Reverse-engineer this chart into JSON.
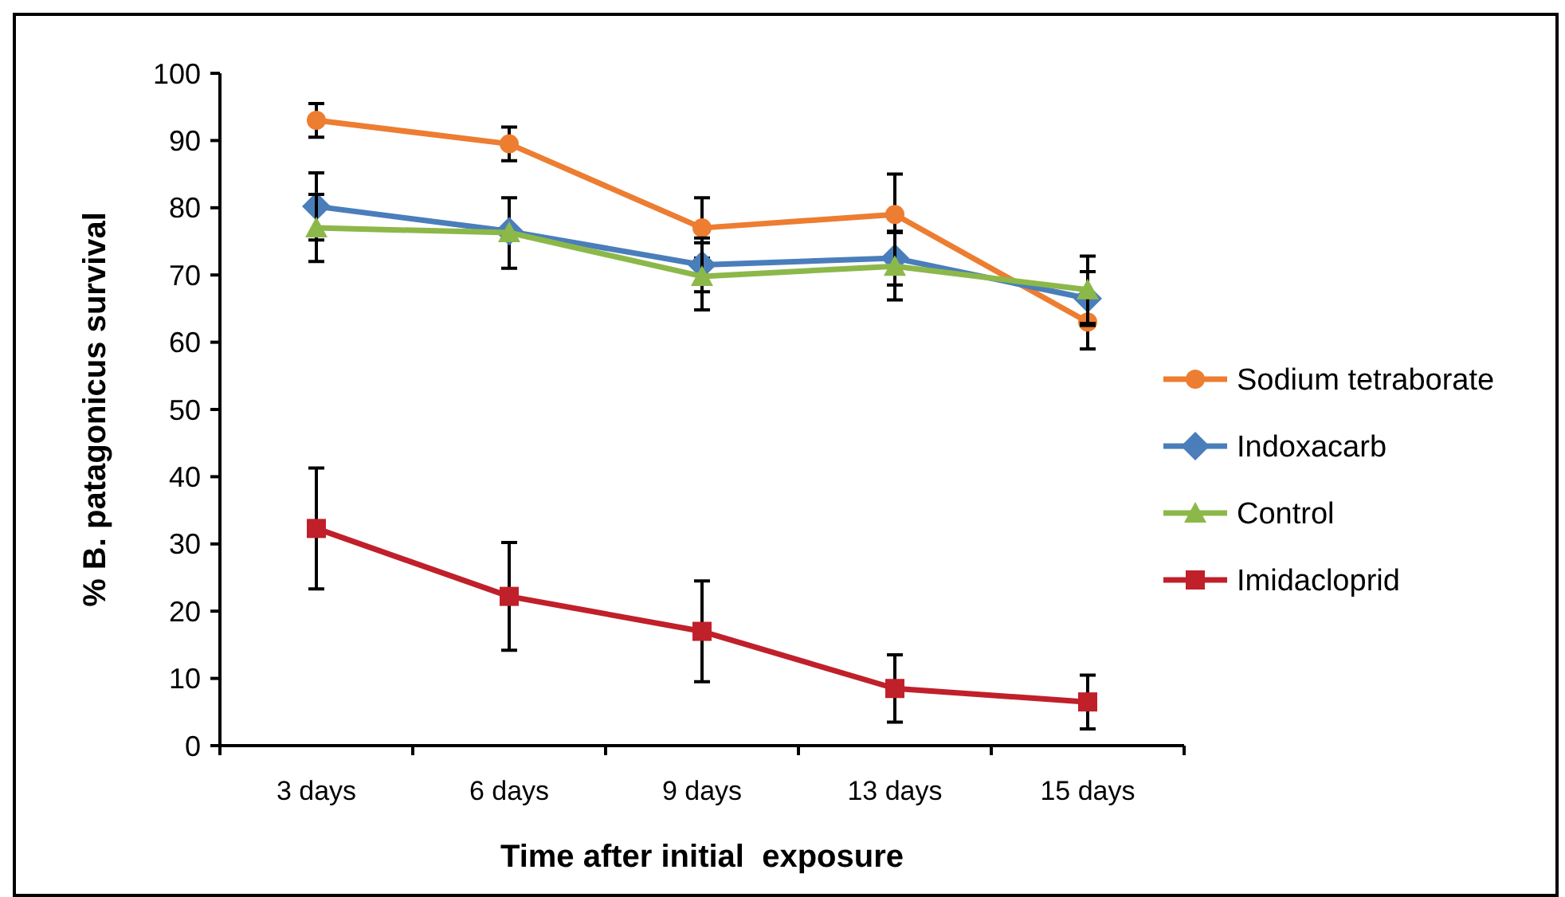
{
  "chart_data": {
    "type": "line",
    "xlabel": "Time after initial  exposure",
    "ylabel": "% B. patagonicus survival",
    "categories": [
      "3 days",
      "6 days",
      "9 days",
      "13 days",
      "15 days"
    ],
    "series": [
      {
        "name": "Sodium tetraborate",
        "color": "#ed7d31",
        "marker": "circle",
        "values": [
          93,
          89.5,
          77,
          79,
          63
        ],
        "errors": [
          2.5,
          2.5,
          4.5,
          6,
          4
        ]
      },
      {
        "name": "Indoxacarb",
        "color": "#4a7ebb",
        "marker": "diamond",
        "values": [
          80.2,
          76.5,
          71.5,
          72.5,
          66.5
        ],
        "errors": [
          5,
          [
            71,
            81.5
          ],
          4,
          4,
          4
        ]
      },
      {
        "name": "Control",
        "color": "#8cb84a",
        "marker": "triangle",
        "values": [
          77,
          76.3,
          69.8,
          71.3,
          67.8
        ],
        "errors": [
          5,
          null,
          5,
          5,
          5
        ]
      },
      {
        "name": "Imidacloprid",
        "color": "#c0202a",
        "marker": "square",
        "values": [
          32.3,
          22.2,
          17,
          8.5,
          6.5
        ],
        "errors": [
          9,
          8,
          7.5,
          5,
          4
        ]
      }
    ],
    "ylim": [
      0,
      100
    ],
    "yticks": [
      0,
      10,
      20,
      30,
      40,
      50,
      60,
      70,
      80,
      90,
      100
    ],
    "grid": false,
    "legend": "right",
    "line_style": "solid"
  }
}
